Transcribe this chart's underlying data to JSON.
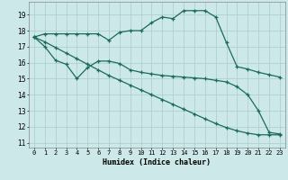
{
  "xlabel": "Humidex (Indice chaleur)",
  "ylabel": "",
  "bg_color": "#cce8e8",
  "grid_color": "#b0d0d0",
  "line_color": "#1a6b5a",
  "xlim": [
    -0.5,
    23.5
  ],
  "ylim": [
    10.7,
    19.8
  ],
  "yticks": [
    11,
    12,
    13,
    14,
    15,
    16,
    17,
    18,
    19
  ],
  "xticks": [
    0,
    1,
    2,
    3,
    4,
    5,
    6,
    7,
    8,
    9,
    10,
    11,
    12,
    13,
    14,
    15,
    16,
    17,
    18,
    19,
    20,
    21,
    22,
    23
  ],
  "line1_x": [
    0,
    1,
    2,
    3,
    4,
    5,
    6,
    7,
    8,
    9,
    10,
    11,
    12,
    13,
    14,
    15,
    16,
    17,
    18,
    19,
    20,
    21,
    22,
    23
  ],
  "line1_y": [
    17.6,
    17.8,
    17.8,
    17.8,
    17.8,
    17.8,
    17.8,
    17.4,
    17.9,
    18.0,
    18.0,
    18.5,
    18.85,
    18.75,
    19.25,
    19.25,
    19.25,
    18.85,
    17.25,
    15.75,
    15.6,
    15.4,
    15.25,
    15.1
  ],
  "line2_x": [
    0,
    1,
    2,
    3,
    4,
    5,
    6,
    7,
    8,
    9,
    10,
    11,
    12,
    13,
    14,
    15,
    16,
    17,
    18,
    19,
    20,
    21,
    22,
    23
  ],
  "line2_y": [
    17.6,
    17.0,
    16.15,
    15.9,
    15.0,
    15.7,
    16.1,
    16.1,
    15.95,
    15.55,
    15.4,
    15.3,
    15.2,
    15.15,
    15.1,
    15.05,
    15.0,
    14.9,
    14.8,
    14.5,
    14.0,
    13.0,
    11.65,
    11.55
  ],
  "line3_x": [
    0,
    1,
    2,
    3,
    4,
    5,
    6,
    7,
    8,
    9,
    10,
    11,
    12,
    13,
    14,
    15,
    16,
    17,
    18,
    19,
    20,
    21,
    22,
    23
  ],
  "line3_y": [
    17.6,
    17.3,
    16.95,
    16.6,
    16.25,
    15.9,
    15.55,
    15.2,
    14.9,
    14.6,
    14.3,
    14.0,
    13.7,
    13.4,
    13.1,
    12.8,
    12.5,
    12.2,
    11.95,
    11.75,
    11.6,
    11.5,
    11.5,
    11.5
  ]
}
